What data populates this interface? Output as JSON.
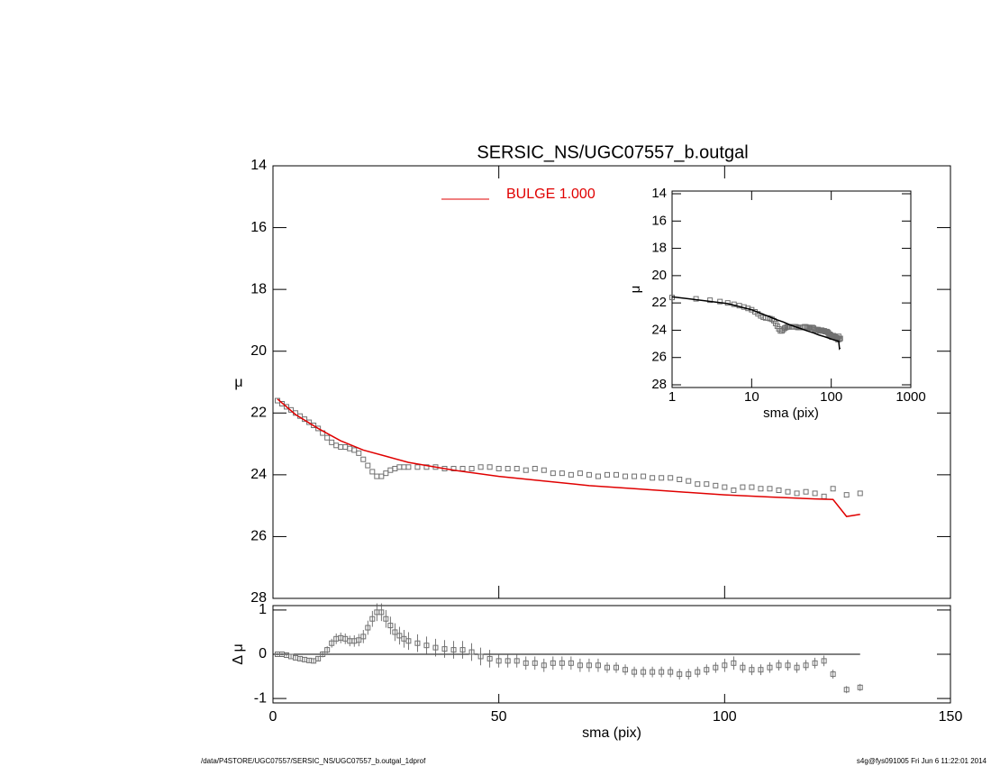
{
  "chart_data": [
    {
      "type": "scatter",
      "title": "SERSIC_NS/UGC07557_b.outgal",
      "ylabel": "μ",
      "ylim": [
        28,
        14
      ],
      "yticks": [
        14,
        16,
        18,
        20,
        22,
        24,
        26,
        28
      ],
      "series": [
        {
          "color": "#707070",
          "x": [
            1,
            2,
            3,
            4,
            5,
            6,
            7,
            8,
            9,
            10,
            11,
            12,
            13,
            14,
            15,
            16,
            17,
            18,
            19,
            20,
            21,
            22,
            23,
            24,
            25,
            26,
            27,
            28,
            29,
            30,
            32,
            34,
            36,
            38,
            40,
            42,
            44,
            46,
            48,
            50,
            52,
            54,
            56,
            58,
            60,
            62,
            64,
            66,
            68,
            70,
            72,
            74,
            76,
            78,
            80,
            82,
            84,
            86,
            88,
            90,
            92,
            94,
            96,
            98,
            100,
            102,
            104,
            106,
            108,
            110,
            112,
            114,
            116,
            118,
            120,
            122,
            124,
            127,
            130
          ],
          "values": [
            21.6,
            21.7,
            21.8,
            21.9,
            22.0,
            22.1,
            22.2,
            22.3,
            22.4,
            22.5,
            22.65,
            22.8,
            22.95,
            23.05,
            23.1,
            23.1,
            23.15,
            23.2,
            23.3,
            23.5,
            23.7,
            23.9,
            24.05,
            24.05,
            23.95,
            23.85,
            23.8,
            23.75,
            23.75,
            23.75,
            23.75,
            23.75,
            23.75,
            23.8,
            23.8,
            23.8,
            23.8,
            23.75,
            23.75,
            23.8,
            23.8,
            23.8,
            23.85,
            23.8,
            23.85,
            23.95,
            23.95,
            24.0,
            23.95,
            24.0,
            24.05,
            24.0,
            24.0,
            24.05,
            24.05,
            24.05,
            24.1,
            24.1,
            24.1,
            24.15,
            24.2,
            24.3,
            24.3,
            24.35,
            24.4,
            24.5,
            24.4,
            24.4,
            24.45,
            24.45,
            24.5,
            24.55,
            24.6,
            24.55,
            24.6,
            24.7,
            24.45,
            24.65,
            24.6
          ]
        },
        {
          "name": "BULGE  1.000",
          "color": "#e00000",
          "x": [
            1,
            5,
            10,
            15,
            20,
            25,
            30,
            40,
            50,
            60,
            70,
            80,
            90,
            100,
            110,
            120,
            124,
            127,
            130
          ],
          "values": [
            21.55,
            22.05,
            22.5,
            22.9,
            23.2,
            23.4,
            23.6,
            23.85,
            24.05,
            24.2,
            24.35,
            24.45,
            24.55,
            24.65,
            24.72,
            24.78,
            24.8,
            25.35,
            25.28
          ]
        }
      ]
    },
    {
      "type": "errorbar",
      "ylabel": "Δ μ",
      "xlabel": "sma (pix)",
      "xlim": [
        0,
        150
      ],
      "xticks": [
        0,
        50,
        100,
        150
      ],
      "ylim": [
        -1.1,
        1.1
      ],
      "yticks": [
        -1,
        0,
        1
      ],
      "x": [
        1,
        2,
        3,
        4,
        5,
        6,
        7,
        8,
        9,
        10,
        11,
        12,
        13,
        14,
        15,
        16,
        17,
        18,
        19,
        20,
        21,
        22,
        23,
        24,
        25,
        26,
        27,
        28,
        29,
        30,
        32,
        34,
        36,
        38,
        40,
        42,
        44,
        46,
        48,
        50,
        52,
        54,
        56,
        58,
        60,
        62,
        64,
        66,
        68,
        70,
        72,
        74,
        76,
        78,
        80,
        82,
        84,
        86,
        88,
        90,
        92,
        94,
        96,
        98,
        100,
        102,
        104,
        106,
        108,
        110,
        112,
        114,
        116,
        118,
        120,
        122,
        124,
        127,
        130
      ],
      "values": [
        0,
        0,
        -0.02,
        -0.05,
        -0.08,
        -0.1,
        -0.12,
        -0.14,
        -0.15,
        -0.1,
        0,
        0.1,
        0.25,
        0.35,
        0.37,
        0.35,
        0.3,
        0.3,
        0.32,
        0.4,
        0.6,
        0.8,
        0.95,
        0.95,
        0.8,
        0.65,
        0.5,
        0.42,
        0.35,
        0.3,
        0.25,
        0.2,
        0.15,
        0.12,
        0.1,
        0.1,
        0.05,
        -0.05,
        -0.1,
        -0.15,
        -0.15,
        -0.15,
        -0.2,
        -0.2,
        -0.25,
        -0.2,
        -0.2,
        -0.2,
        -0.25,
        -0.25,
        -0.25,
        -0.3,
        -0.3,
        -0.35,
        -0.4,
        -0.4,
        -0.4,
        -0.4,
        -0.4,
        -0.45,
        -0.45,
        -0.4,
        -0.35,
        -0.3,
        -0.25,
        -0.2,
        -0.3,
        -0.35,
        -0.35,
        -0.3,
        -0.25,
        -0.25,
        -0.3,
        -0.25,
        -0.2,
        -0.15,
        -0.45,
        -0.8,
        -0.75
      ],
      "errors": [
        0.03,
        0.03,
        0.03,
        0.04,
        0.04,
        0.05,
        0.05,
        0.05,
        0.06,
        0.06,
        0.07,
        0.08,
        0.1,
        0.12,
        0.12,
        0.12,
        0.12,
        0.13,
        0.14,
        0.15,
        0.16,
        0.18,
        0.2,
        0.2,
        0.2,
        0.2,
        0.2,
        0.2,
        0.2,
        0.2,
        0.2,
        0.2,
        0.2,
        0.2,
        0.2,
        0.2,
        0.2,
        0.2,
        0.2,
        0.15,
        0.15,
        0.15,
        0.15,
        0.15,
        0.15,
        0.15,
        0.15,
        0.15,
        0.15,
        0.15,
        0.15,
        0.12,
        0.12,
        0.12,
        0.12,
        0.12,
        0.12,
        0.12,
        0.12,
        0.12,
        0.12,
        0.12,
        0.12,
        0.12,
        0.15,
        0.15,
        0.12,
        0.12,
        0.12,
        0.12,
        0.12,
        0.12,
        0.12,
        0.12,
        0.12,
        0.12,
        0.1,
        0.08,
        0.08
      ]
    },
    {
      "type": "inset",
      "xlabel": "sma (pix)",
      "ylabel": "μ",
      "xlog": true,
      "xlim": [
        1,
        1000
      ],
      "xticks": [
        1,
        10,
        100,
        1000
      ],
      "ylim": [
        28,
        14
      ],
      "yticks": [
        14,
        16,
        18,
        20,
        22,
        24,
        26,
        28
      ]
    }
  ],
  "footer": {
    "left": "/data/P4STORE/UGC07557/SERSIC_NS/UGC07557_b.outgal_1dprof",
    "right": "s4g@fys091005  Fri Jun  6 11:22:01 2014"
  }
}
